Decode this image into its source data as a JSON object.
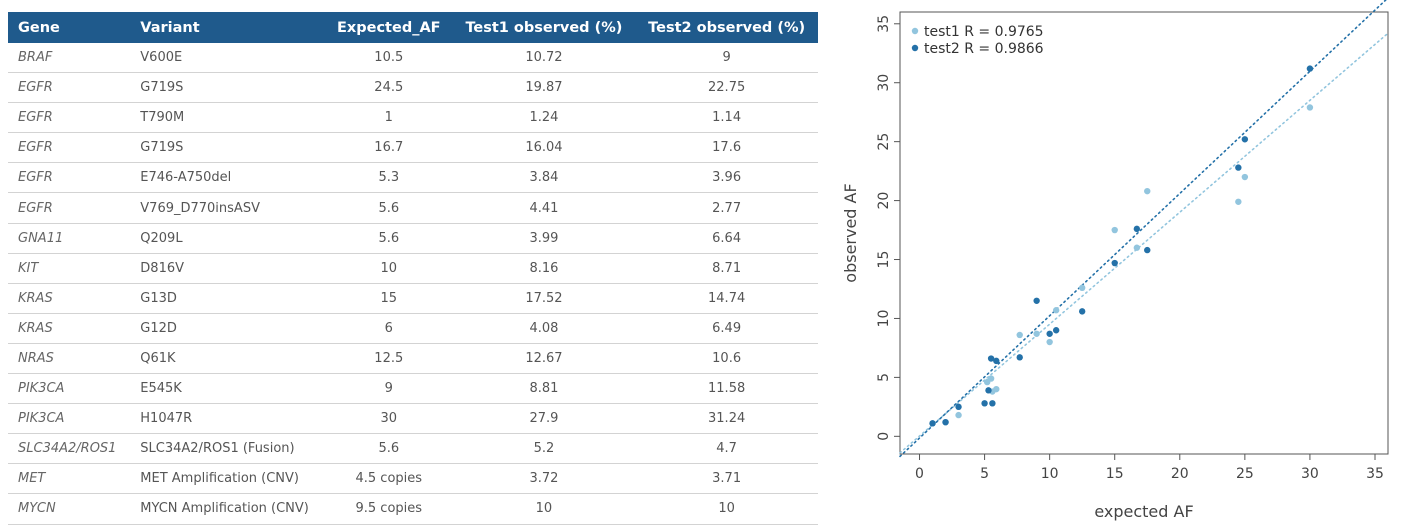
{
  "table": {
    "columns": [
      "Gene",
      "Variant",
      "Expected_AF",
      "Test1 observed (%)",
      "Test2 observed (%)"
    ],
    "rows": [
      [
        "BRAF",
        "V600E",
        "10.5",
        "10.72",
        "9"
      ],
      [
        "EGFR",
        "G719S",
        "24.5",
        "19.87",
        "22.75"
      ],
      [
        "EGFR",
        "T790M",
        "1",
        "1.24",
        "1.14"
      ],
      [
        "EGFR",
        "G719S",
        "16.7",
        "16.04",
        "17.6"
      ],
      [
        "EGFR",
        "E746-A750del",
        "5.3",
        "3.84",
        "3.96"
      ],
      [
        "EGFR",
        "V769_D770insASV",
        "5.6",
        "4.41",
        "2.77"
      ],
      [
        "GNA11",
        "Q209L",
        "5.6",
        "3.99",
        "6.64"
      ],
      [
        "KIT",
        "D816V",
        "10",
        "8.16",
        "8.71"
      ],
      [
        "KRAS",
        "G13D",
        "15",
        "17.52",
        "14.74"
      ],
      [
        "KRAS",
        "G12D",
        "6",
        "4.08",
        "6.49"
      ],
      [
        "NRAS",
        "Q61K",
        "12.5",
        "12.67",
        "10.6"
      ],
      [
        "PIK3CA",
        "E545K",
        "9",
        "8.81",
        "11.58"
      ],
      [
        "PIK3CA",
        "H1047R",
        "30",
        "27.9",
        "31.24"
      ],
      [
        "SLC34A2/ROS1",
        "SLC34A2/ROS1 (Fusion)",
        "5.6",
        "5.2",
        "4.7"
      ],
      [
        "MET",
        "MET Amplification (CNV)",
        "4.5 copies",
        "3.72",
        "3.71"
      ],
      [
        "MYCN",
        "MYCN Amplification (CNV)",
        "9.5 copies",
        "10",
        "10"
      ]
    ]
  },
  "chart_data": {
    "type": "scatter",
    "xlabel": "expected AF",
    "ylabel": "observed AF",
    "xlim": [
      -1.5,
      36
    ],
    "ylim": [
      -1.5,
      36
    ],
    "xticks": [
      0,
      5,
      10,
      15,
      20,
      25,
      30,
      35
    ],
    "yticks": [
      0,
      5,
      10,
      15,
      20,
      25,
      30,
      35
    ],
    "grid": false,
    "legend_position": "top-left",
    "series": [
      {
        "name": "test1 R = 0.9765",
        "color": "#92c5de",
        "fit": [
          [
            -1.5,
            -1.4
          ],
          [
            36,
            34.2
          ]
        ],
        "points": [
          [
            1,
            1.1
          ],
          [
            2,
            1.2
          ],
          [
            3,
            1.8
          ],
          [
            5.2,
            4.6
          ],
          [
            5.5,
            4.9
          ],
          [
            5.6,
            3.8
          ],
          [
            5.9,
            4.0
          ],
          [
            7.7,
            8.6
          ],
          [
            9,
            8.7
          ],
          [
            10,
            8.0
          ],
          [
            10.5,
            10.7
          ],
          [
            12.5,
            12.6
          ],
          [
            15,
            17.5
          ],
          [
            16.7,
            16.0
          ],
          [
            17.5,
            20.8
          ],
          [
            24.5,
            19.9
          ],
          [
            25,
            22.0
          ],
          [
            30,
            27.9
          ]
        ]
      },
      {
        "name": "test2 R = 0.9866",
        "color": "#2471a8",
        "fit": [
          [
            -1.5,
            -1.7
          ],
          [
            36,
            37.2
          ]
        ],
        "points": [
          [
            1,
            1.1
          ],
          [
            2,
            1.2
          ],
          [
            3,
            2.5
          ],
          [
            5,
            2.8
          ],
          [
            5.3,
            3.9
          ],
          [
            5.5,
            6.6
          ],
          [
            5.6,
            2.8
          ],
          [
            5.9,
            6.4
          ],
          [
            7.7,
            6.7
          ],
          [
            9,
            11.5
          ],
          [
            10,
            8.7
          ],
          [
            10.5,
            9.0
          ],
          [
            12.5,
            10.6
          ],
          [
            15,
            14.7
          ],
          [
            16.7,
            17.6
          ],
          [
            17.5,
            15.8
          ],
          [
            24.5,
            22.8
          ],
          [
            25,
            25.2
          ],
          [
            30,
            31.2
          ]
        ]
      }
    ]
  }
}
